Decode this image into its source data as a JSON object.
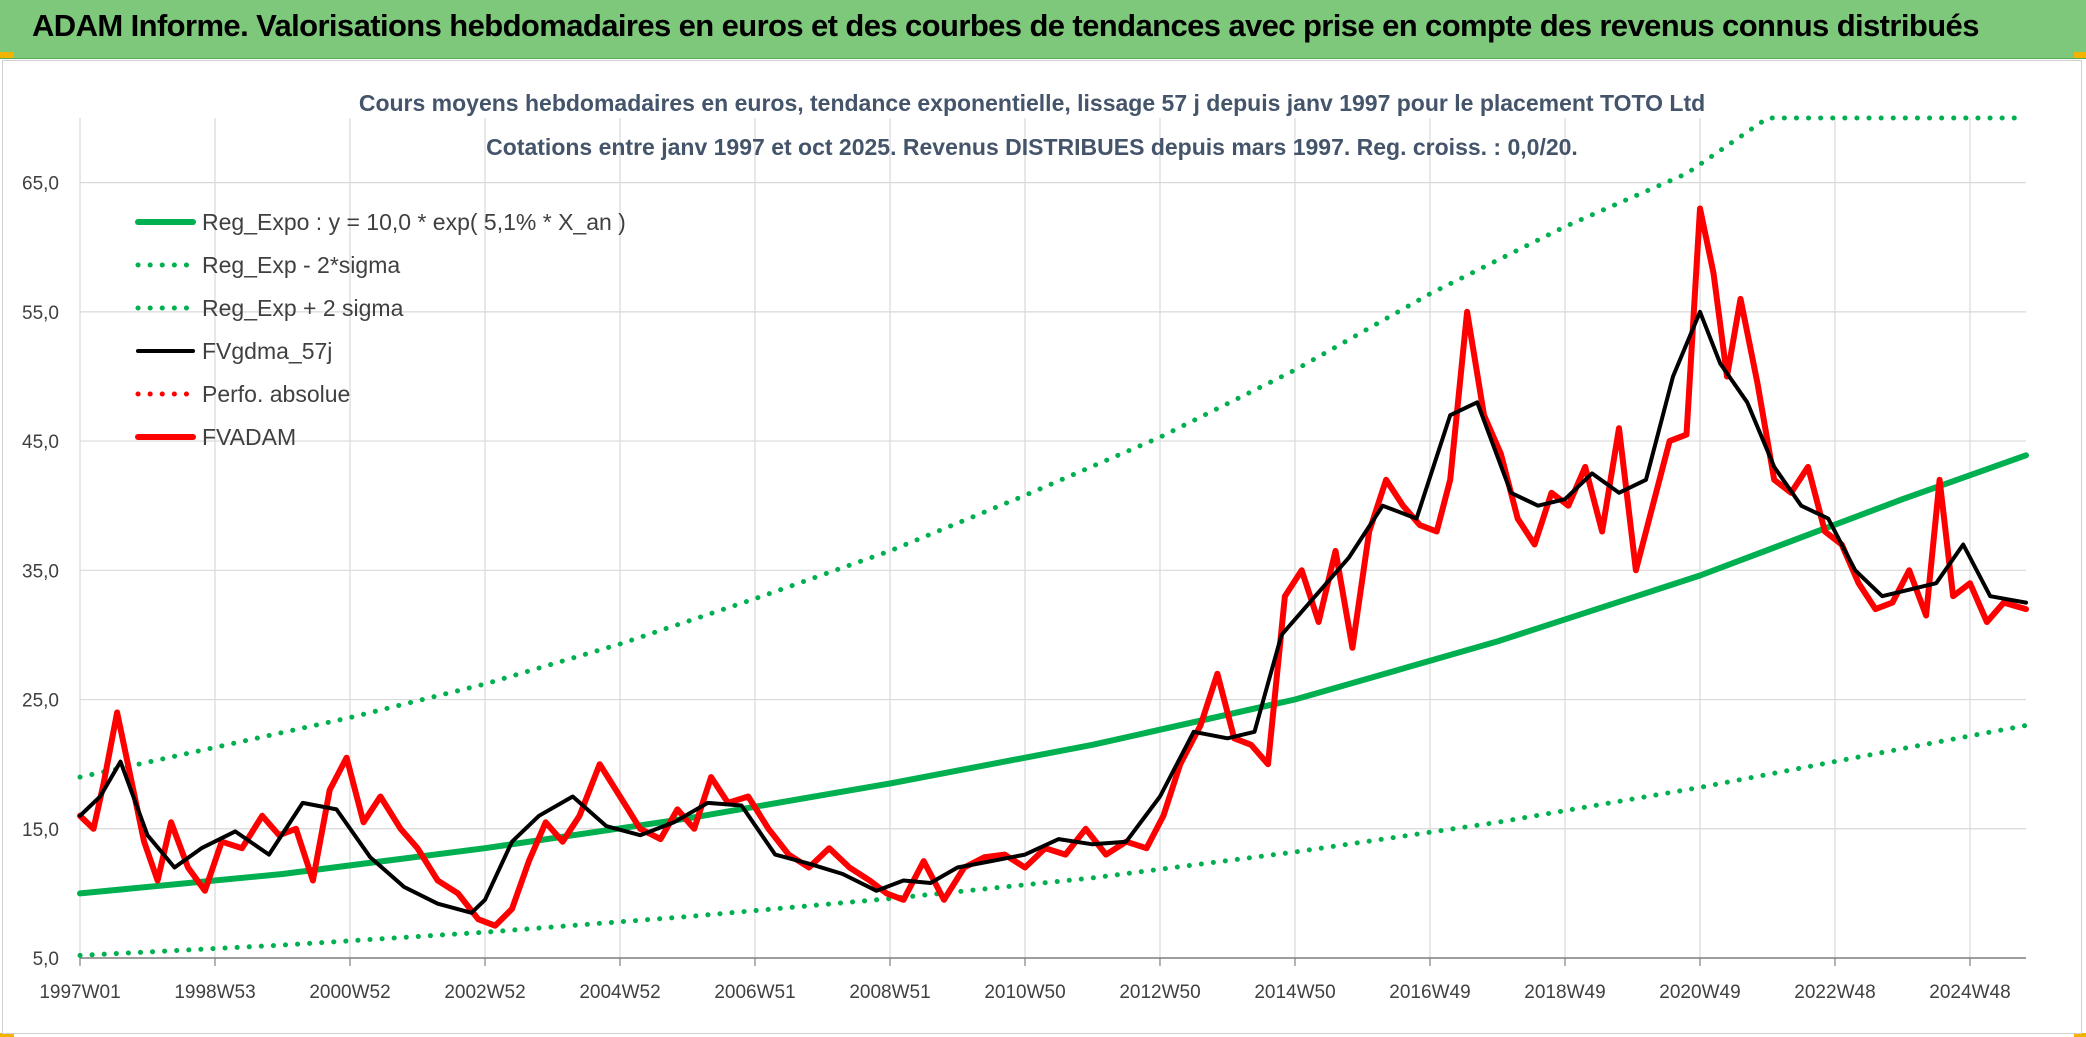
{
  "banner": {
    "title": "ADAM Informe. Valorisations hebdomadaires en euros et des courbes de tendances avec prise en compte des revenus connus distribués"
  },
  "colors": {
    "banner_bg": "#7dc87a",
    "trend_green": "#00b050",
    "smooth_black": "#000000",
    "price_red": "#ff0000",
    "grid": "#d9d9d9",
    "title_text": "#44546a"
  },
  "chart_data": {
    "type": "line",
    "title_line1": "Cours moyens hebdomadaires en euros, tendance exponentielle, lissage 57 j depuis janv 1997 pour le placement TOTO Ltd",
    "title_line2": "Cotations entre janv 1997 et oct 2025. Revenus DISTRIBUES depuis mars 1997. Reg. croiss. : 0,0/20.",
    "xlabel": "",
    "ylabel": "",
    "x_range": [
      1997.0,
      2025.83
    ],
    "ylim": [
      5,
      70
    ],
    "y_ticks": [
      "5,0",
      "15,0",
      "25,0",
      "35,0",
      "45,0",
      "55,0",
      "65,0"
    ],
    "x_ticks": [
      {
        "label": "1997W01",
        "year": 1997.0
      },
      {
        "label": "1998W53",
        "year": 1999.0
      },
      {
        "label": "2000W52",
        "year": 2001.0
      },
      {
        "label": "2002W52",
        "year": 2003.0
      },
      {
        "label": "2004W52",
        "year": 2005.0
      },
      {
        "label": "2006W51",
        "year": 2007.0
      },
      {
        "label": "2008W51",
        "year": 2009.0
      },
      {
        "label": "2010W50",
        "year": 2011.0
      },
      {
        "label": "2012W50",
        "year": 2013.0
      },
      {
        "label": "2014W50",
        "year": 2015.0
      },
      {
        "label": "2016W49",
        "year": 2017.0
      },
      {
        "label": "2018W49",
        "year": 2019.0
      },
      {
        "label": "2020W49",
        "year": 2021.0
      },
      {
        "label": "2022W48",
        "year": 2023.0
      },
      {
        "label": "2024W48",
        "year": 2025.0
      }
    ],
    "grid": true,
    "legend_position": "top-left",
    "series": [
      {
        "name": "Reg_Expo : y = 10,0 * exp( 5,1% *  X_an )",
        "style": "solid-thick",
        "color": "#00b050",
        "x": [
          1997,
          2000,
          2003,
          2006,
          2009,
          2012,
          2015,
          2018,
          2021,
          2024,
          2025.83
        ],
        "y": [
          10.0,
          11.5,
          13.5,
          15.8,
          18.5,
          21.5,
          25.0,
          29.5,
          34.6,
          40.5,
          43.9
        ]
      },
      {
        "name": "Reg_Exp - 2*sigma",
        "style": "dotted",
        "color": "#00b050",
        "x": [
          1997,
          2000,
          2003,
          2006,
          2009,
          2012,
          2015,
          2018,
          2021,
          2024,
          2025.83
        ],
        "y": [
          5.2,
          6.0,
          7.0,
          8.2,
          9.6,
          11.2,
          13.2,
          15.5,
          18.2,
          21.2,
          23.0
        ]
      },
      {
        "name": "Reg_Exp + 2 sigma",
        "style": "dotted",
        "color": "#00b050",
        "x": [
          1997,
          1999,
          2001,
          2003,
          2005,
          2007,
          2009,
          2011,
          2013,
          2015,
          2017,
          2019,
          2020.8,
          2022,
          2023,
          2024,
          2025.83
        ],
        "y": [
          19.0,
          21.3,
          23.6,
          26.2,
          29.3,
          32.8,
          36.5,
          40.8,
          45.3,
          50.5,
          56.4,
          61.6,
          65.7,
          70.0,
          70.0,
          70.0,
          70.0
        ]
      },
      {
        "name": "FVgdma_57j",
        "style": "solid",
        "color": "#000000",
        "x": [
          1997.0,
          1997.3,
          1997.6,
          1998.0,
          1998.4,
          1998.8,
          1999.3,
          1999.8,
          2000.3,
          2000.8,
          2001.3,
          2001.8,
          2002.3,
          2002.8,
          2003.0,
          2003.4,
          2003.8,
          2004.3,
          2004.8,
          2005.3,
          2005.8,
          2006.3,
          2006.8,
          2007.3,
          2007.8,
          2008.3,
          2008.8,
          2009.2,
          2009.6,
          2010.0,
          2010.5,
          2011.0,
          2011.5,
          2012.0,
          2012.5,
          2013.0,
          2013.5,
          2014.0,
          2014.4,
          2014.8,
          2015.3,
          2015.8,
          2016.3,
          2016.8,
          2017.3,
          2017.7,
          2018.2,
          2018.6,
          2019.0,
          2019.4,
          2019.8,
          2020.2,
          2020.6,
          2021.0,
          2021.3,
          2021.7,
          2022.1,
          2022.5,
          2022.9,
          2023.3,
          2023.7,
          2024.1,
          2024.5,
          2024.9,
          2025.3,
          2025.83
        ],
        "y": [
          16.0,
          17.5,
          20.2,
          14.5,
          12.0,
          13.5,
          14.8,
          13.0,
          17.0,
          16.5,
          12.8,
          10.5,
          9.2,
          8.5,
          9.5,
          14.0,
          16.0,
          17.5,
          15.2,
          14.5,
          15.5,
          17.0,
          16.8,
          13.0,
          12.3,
          11.5,
          10.2,
          11.0,
          10.8,
          12.0,
          12.5,
          13.0,
          14.2,
          13.8,
          14.0,
          17.5,
          22.5,
          22.0,
          22.5,
          30.0,
          33.0,
          36.0,
          40.0,
          39.0,
          47.0,
          48.0,
          41.0,
          40.0,
          40.5,
          42.5,
          41.0,
          42.0,
          50.0,
          55.0,
          51.0,
          48.0,
          43.0,
          40.0,
          39.0,
          35.0,
          33.0,
          33.5,
          34.0,
          37.0,
          33.0,
          32.5
        ]
      },
      {
        "name": "Perfo. absolue",
        "style": "dotted",
        "color": "#ff0000",
        "x": [],
        "y": []
      },
      {
        "name": "FVADAM",
        "style": "solid-thick",
        "color": "#ff0000",
        "x": [
          1997.0,
          1997.2,
          1997.35,
          1997.55,
          1997.75,
          1997.95,
          1998.15,
          1998.35,
          1998.6,
          1998.85,
          1999.1,
          1999.4,
          1999.7,
          1999.95,
          2000.2,
          2000.45,
          2000.7,
          2000.95,
          2001.2,
          2001.45,
          2001.75,
          2002.0,
          2002.3,
          2002.6,
          2002.9,
          2003.15,
          2003.4,
          2003.65,
          2003.9,
          2004.15,
          2004.4,
          2004.7,
          2005.0,
          2005.3,
          2005.6,
          2005.85,
          2006.1,
          2006.35,
          2006.6,
          2006.9,
          2007.2,
          2007.5,
          2007.8,
          2008.1,
          2008.4,
          2008.7,
          2008.95,
          2009.2,
          2009.5,
          2009.8,
          2010.1,
          2010.4,
          2010.7,
          2011.0,
          2011.3,
          2011.6,
          2011.9,
          2012.2,
          2012.5,
          2012.8,
          2013.05,
          2013.3,
          2013.6,
          2013.85,
          2014.1,
          2014.35,
          2014.6,
          2014.85,
          2015.1,
          2015.35,
          2015.6,
          2015.85,
          2016.1,
          2016.35,
          2016.6,
          2016.85,
          2017.1,
          2017.3,
          2017.55,
          2017.8,
          2018.05,
          2018.3,
          2018.55,
          2018.8,
          2019.05,
          2019.3,
          2019.55,
          2019.8,
          2020.05,
          2020.3,
          2020.55,
          2020.8,
          2021.0,
          2021.2,
          2021.4,
          2021.6,
          2021.85,
          2022.1,
          2022.35,
          2022.6,
          2022.85,
          2023.1,
          2023.35,
          2023.6,
          2023.85,
          2024.1,
          2024.35,
          2024.55,
          2024.75,
          2025.0,
          2025.25,
          2025.5,
          2025.83
        ],
        "y": [
          16.0,
          15.0,
          18.5,
          24.0,
          19.0,
          14.0,
          11.0,
          15.5,
          12.0,
          10.2,
          14.0,
          13.5,
          16.0,
          14.5,
          15.0,
          11.0,
          18.0,
          20.5,
          15.5,
          17.5,
          15.0,
          13.5,
          11.0,
          10.0,
          8.0,
          7.5,
          8.8,
          12.5,
          15.5,
          14.0,
          16.0,
          20.0,
          17.5,
          15.0,
          14.2,
          16.5,
          15.0,
          19.0,
          17.0,
          17.5,
          15.0,
          13.0,
          12.0,
          13.5,
          12.0,
          11.0,
          10.0,
          9.5,
          12.5,
          9.5,
          12.0,
          12.8,
          13.0,
          12.0,
          13.5,
          13.0,
          15.0,
          13.0,
          14.0,
          13.5,
          16.0,
          20.0,
          23.0,
          27.0,
          22.0,
          21.5,
          20.0,
          33.0,
          35.0,
          31.0,
          36.5,
          29.0,
          38.0,
          42.0,
          40.0,
          38.5,
          38.0,
          42.0,
          55.0,
          47.0,
          44.0,
          39.0,
          37.0,
          41.0,
          40.0,
          43.0,
          38.0,
          46.0,
          35.0,
          40.0,
          45.0,
          45.5,
          63.0,
          58.0,
          50.0,
          56.0,
          49.5,
          42.0,
          41.0,
          43.0,
          38.0,
          37.0,
          34.0,
          32.0,
          32.5,
          35.0,
          31.5,
          42.0,
          33.0,
          34.0,
          31.0,
          32.5,
          32.0
        ]
      }
    ]
  }
}
